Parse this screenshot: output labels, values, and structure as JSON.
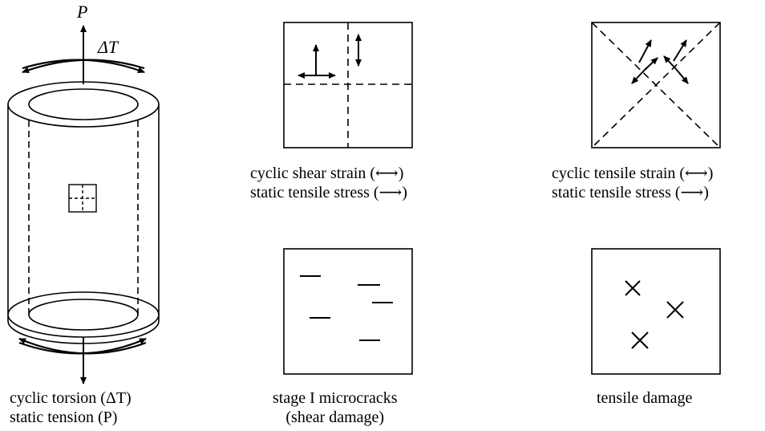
{
  "labels": {
    "p": "P",
    "delta_t": "ΔT"
  },
  "captions": {
    "left": [
      "cyclic torsion (ΔT)",
      "static tension (P)"
    ],
    "middle_top": [
      "cyclic shear strain (⟷)",
      "static tensile stress (⟶)"
    ],
    "right_top": [
      "cyclic tensile strain (⟷)",
      "static tensile stress (⟶)"
    ],
    "middle_bottom": [
      "stage I microcracks",
      "(shear damage)"
    ],
    "right_bottom": [
      "tensile damage"
    ]
  }
}
